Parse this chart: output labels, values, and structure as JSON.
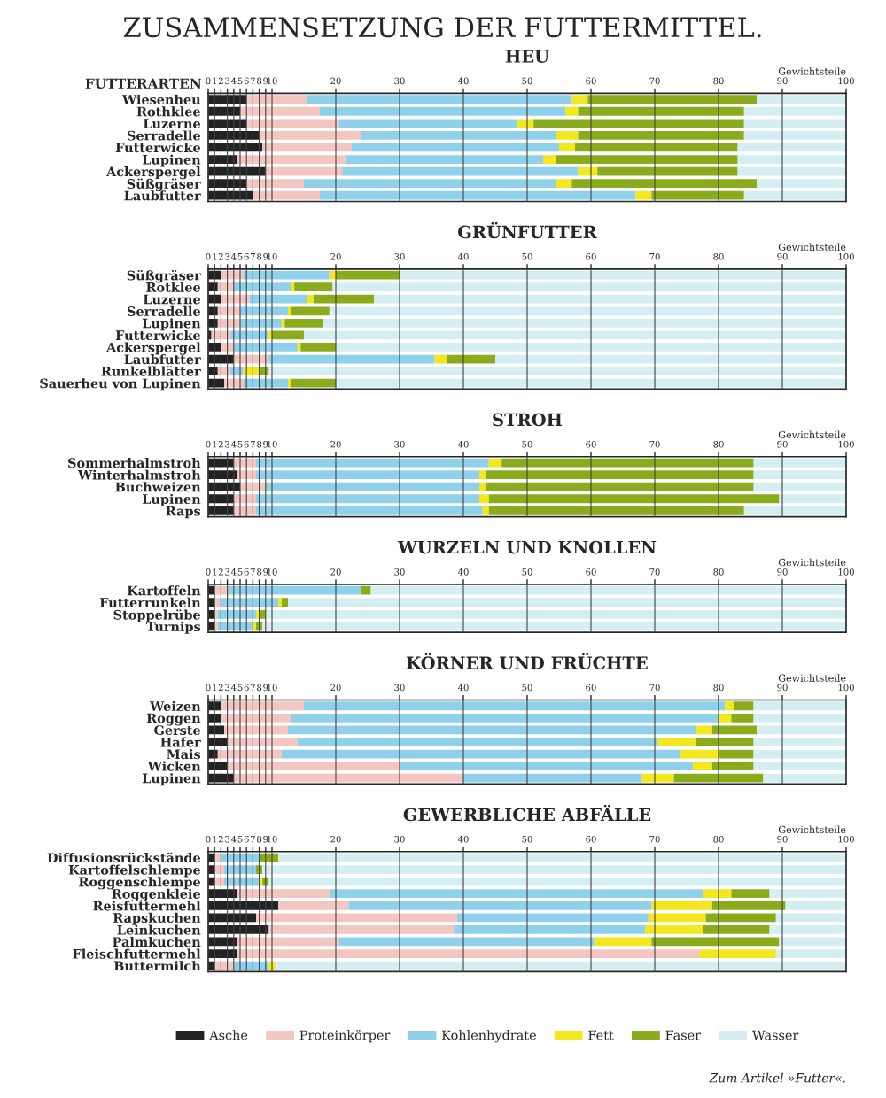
{
  "chart_data": [
    {
      "type": "bar",
      "orientation": "horizontal",
      "stacked": true,
      "title": "ZUSAMMENSETZUNG DER FUTTERMITTEL.",
      "subtitle": "HEU",
      "ylabel": "FUTTERARTEN",
      "xlabel": "Gewichtsteile",
      "xlim": [
        0,
        100
      ],
      "xticks": [
        0,
        1,
        2,
        3,
        4,
        5,
        6,
        7,
        8,
        9,
        10,
        20,
        30,
        40,
        50,
        60,
        70,
        80,
        90,
        100
      ],
      "grid": "x",
      "categories": [
        "Wiesenheu",
        "Rothklee",
        "Luzerne",
        "Serradelle",
        "Futterwicke",
        "Lupinen",
        "Ackerspergel",
        "Süßgräser",
        "Laubfutter"
      ],
      "series": [
        {
          "color": "#222222",
          "values": [
            6,
            5,
            6,
            8,
            8.5,
            4.5,
            9,
            6,
            7
          ]
        },
        {
          "color": "#f4c6c2",
          "values": [
            9.5,
            12.5,
            14.5,
            16,
            14,
            17,
            12,
            9,
            10.5
          ]
        },
        {
          "color": "#8fd0ea",
          "values": [
            41.5,
            38.5,
            28,
            30.5,
            32.5,
            31,
            37,
            39.5,
            49.5
          ]
        },
        {
          "color": "#f3e81e",
          "values": [
            2.5,
            2,
            2.5,
            3.5,
            2.5,
            2,
            3,
            2.5,
            2.5
          ]
        },
        {
          "color": "#8aab1c",
          "values": [
            26.5,
            26,
            33,
            26,
            25.5,
            28.5,
            22,
            29,
            14.5
          ]
        },
        {
          "color": "#d4eef2",
          "values": [
            14,
            16,
            16,
            16,
            17,
            17,
            17,
            14,
            16
          ]
        }
      ]
    },
    {
      "type": "bar",
      "orientation": "horizontal",
      "stacked": true,
      "title": "GRÜNFUTTER",
      "xlabel": "Gewichtsteile",
      "xlim": [
        0,
        100
      ],
      "xticks": [
        0,
        1,
        2,
        3,
        4,
        5,
        6,
        7,
        8,
        9,
        10,
        20,
        30,
        40,
        50,
        60,
        70,
        80,
        90,
        100
      ],
      "grid": "x",
      "categories": [
        "Süßgräser",
        "Rotklee",
        "Luzerne",
        "Serradelle",
        "Lupinen",
        "Futterwicke",
        "Ackerspergel",
        "Laubfutter",
        "Runkelblätter",
        "Sauerheu von Lupinen"
      ],
      "series": [
        {
          "color": "#222222",
          "values": [
            2,
            1.5,
            2,
            1.5,
            1.5,
            0.5,
            2,
            4,
            1.5,
            2.5
          ]
        },
        {
          "color": "#f4c6c2",
          "values": [
            3.5,
            2.5,
            4.5,
            3.5,
            3.5,
            3,
            2,
            5.5,
            2,
            3
          ]
        },
        {
          "color": "#8fd0ea",
          "values": [
            13.5,
            9,
            9,
            7.5,
            6.5,
            6,
            10,
            26,
            2,
            7
          ]
        },
        {
          "color": "#f3e81e",
          "values": [
            1,
            0.5,
            1,
            0.5,
            0.5,
            0.5,
            0.5,
            2,
            2.5,
            0.5
          ]
        },
        {
          "color": "#8aab1c",
          "values": [
            10,
            6,
            9.5,
            6,
            6,
            5,
            5.5,
            7.5,
            1.5,
            7
          ]
        },
        {
          "color": "#d4eef2",
          "values": [
            70,
            80.5,
            74,
            81,
            82,
            85,
            80,
            55,
            90.5,
            80
          ]
        }
      ]
    },
    {
      "type": "bar",
      "orientation": "horizontal",
      "stacked": true,
      "title": "STROH",
      "xlabel": "Gewichtsteile",
      "xlim": [
        0,
        100
      ],
      "xticks": [
        0,
        1,
        2,
        3,
        4,
        5,
        6,
        7,
        8,
        9,
        10,
        20,
        30,
        40,
        50,
        60,
        70,
        80,
        90,
        100
      ],
      "grid": "x",
      "categories": [
        "Sommerhalmstroh",
        "Winterhalmstroh",
        "Buchweizen",
        "Lupinen",
        "Raps"
      ],
      "series": [
        {
          "color": "#222222",
          "values": [
            4,
            4.5,
            5,
            4,
            4
          ]
        },
        {
          "color": "#f4c6c2",
          "values": [
            3.5,
            3,
            4,
            3.5,
            3.5
          ]
        },
        {
          "color": "#8fd0ea",
          "values": [
            36.5,
            35,
            33.5,
            35,
            35.5
          ]
        },
        {
          "color": "#f3e81e",
          "values": [
            2,
            1,
            1,
            1.5,
            1
          ]
        },
        {
          "color": "#8aab1c",
          "values": [
            39.5,
            42,
            42,
            45.5,
            40
          ]
        },
        {
          "color": "#d4eef2",
          "values": [
            14.5,
            14.5,
            14.5,
            10.5,
            16
          ]
        }
      ]
    },
    {
      "type": "bar",
      "orientation": "horizontal",
      "stacked": true,
      "title": "WURZELN UND KNOLLEN",
      "xlabel": "Gewichtsteile",
      "xlim": [
        0,
        100
      ],
      "xticks": [
        0,
        1,
        2,
        3,
        4,
        5,
        6,
        7,
        8,
        9,
        10,
        20,
        30,
        40,
        50,
        60,
        70,
        80,
        90,
        100
      ],
      "grid": "x",
      "categories": [
        "Kartoffeln",
        "Futterrunkeln",
        "Stoppelrübe",
        "Turnips"
      ],
      "series": [
        {
          "color": "#222222",
          "values": [
            1,
            1,
            1,
            1
          ]
        },
        {
          "color": "#f4c6c2",
          "values": [
            2,
            1,
            0.5,
            0.5
          ]
        },
        {
          "color": "#8fd0ea",
          "values": [
            21,
            9,
            6,
            5.5
          ]
        },
        {
          "color": "#f3e81e",
          "values": [
            0,
            0.5,
            0.5,
            0.5
          ]
        },
        {
          "color": "#8aab1c",
          "values": [
            1.5,
            1,
            1,
            1
          ]
        },
        {
          "color": "#d4eef2",
          "values": [
            74.5,
            87.5,
            91,
            91.5
          ]
        }
      ]
    },
    {
      "type": "bar",
      "orientation": "horizontal",
      "stacked": true,
      "title": "KÖRNER UND FRÜCHTE",
      "xlabel": "Gewichtsteile",
      "xlim": [
        0,
        100
      ],
      "xticks": [
        0,
        1,
        2,
        3,
        4,
        5,
        6,
        7,
        8,
        9,
        10,
        20,
        30,
        40,
        50,
        60,
        70,
        80,
        90,
        100
      ],
      "grid": "x",
      "categories": [
        "Weizen",
        "Roggen",
        "Gerste",
        "Hafer",
        "Mais",
        "Wicken",
        "Lupinen"
      ],
      "series": [
        {
          "color": "#222222",
          "values": [
            2,
            2,
            2.5,
            3,
            1.5,
            3,
            4
          ]
        },
        {
          "color": "#f4c6c2",
          "values": [
            13,
            11,
            10,
            11,
            10,
            27,
            36
          ]
        },
        {
          "color": "#8fd0ea",
          "values": [
            66,
            67,
            64,
            56.5,
            62.5,
            46,
            28
          ]
        },
        {
          "color": "#f3e81e",
          "values": [
            1.5,
            2,
            2.5,
            6,
            6,
            3,
            5
          ]
        },
        {
          "color": "#8aab1c",
          "values": [
            3,
            3.5,
            7,
            9,
            5.5,
            6.5,
            14
          ]
        },
        {
          "color": "#d4eef2",
          "values": [
            14.5,
            14.5,
            14,
            14.5,
            14.5,
            14.5,
            13
          ]
        }
      ]
    },
    {
      "type": "bar",
      "orientation": "horizontal",
      "stacked": true,
      "title": "GEWERBLICHE ABFÄLLE",
      "xlabel": "Gewichtsteile",
      "xlim": [
        0,
        100
      ],
      "xticks": [
        0,
        1,
        2,
        3,
        4,
        5,
        6,
        7,
        8,
        9,
        10,
        20,
        30,
        40,
        50,
        60,
        70,
        80,
        90,
        100
      ],
      "grid": "x",
      "legend": "bottom",
      "annotations": [
        "Zum Artikel »Futter«."
      ],
      "categories": [
        "Diffusionsrückstände",
        "Kartoffelschlempe",
        "Roggenschlempe",
        "Roggenkleie",
        "Reisfuttermehl",
        "Rapskuchen",
        "Leinkuchen",
        "Palmkuchen",
        "Fleischfuttermehl",
        "Buttermilch"
      ],
      "series": [
        {
          "name": "Asche",
          "color": "#222222",
          "values": [
            1,
            1,
            1,
            4.5,
            11,
            7.5,
            9.5,
            4.5,
            4.5,
            1
          ]
        },
        {
          "name": "Proteinkörper",
          "color": "#f4c6c2",
          "values": [
            1,
            1.5,
            1.5,
            14.5,
            11,
            31.5,
            29,
            16,
            72.5,
            3
          ]
        },
        {
          "name": "Kohlenhydrate",
          "color": "#8fd0ea",
          "values": [
            6,
            5,
            5.5,
            58.5,
            47.5,
            30,
            30,
            40,
            0,
            5.5
          ]
        },
        {
          "name": "Fett",
          "color": "#f3e81e",
          "values": [
            0,
            0,
            0.5,
            4.5,
            9.5,
            9,
            9,
            9,
            12,
            1
          ]
        },
        {
          "name": "Faser",
          "color": "#8aab1c",
          "values": [
            3,
            1,
            1,
            6,
            11.5,
            11,
            10.5,
            20,
            0,
            0
          ]
        },
        {
          "name": "Wasser",
          "color": "#d4eef2",
          "values": [
            89,
            91.5,
            90.5,
            12,
            9.5,
            11,
            12,
            10.5,
            11,
            89.5
          ]
        }
      ]
    }
  ]
}
